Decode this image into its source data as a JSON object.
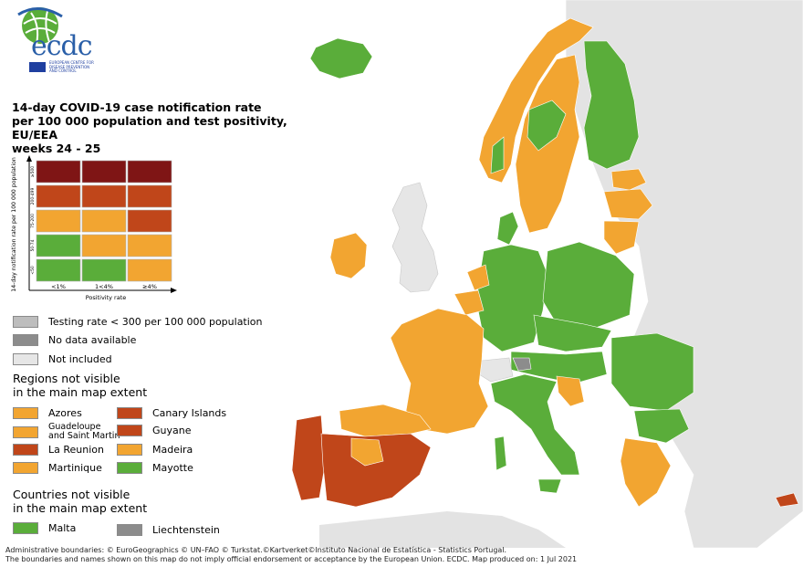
{
  "title": {
    "line1": "14-day COVID-19 case notification rate",
    "line2": "per 100 000 population and test positivity, EU/EEA",
    "line3": "weeks 24 - 25"
  },
  "logo": {
    "wordmark": "ecdc",
    "tagline_line1": "EUROPEAN CENTRE FOR",
    "tagline_line2": "DISEASE PREVENTION",
    "tagline_line3": "AND CONTROL"
  },
  "colors": {
    "dark_red": "#7f1515",
    "red": "#c0461a",
    "orange": "#f2a531",
    "green": "#5aad3a",
    "grey_light": "#bdbdbd",
    "grey_dark": "#8c8c8c",
    "not_included": "#e6e6e6",
    "sea": "#ffffff",
    "non_eu": "#e3e3e3"
  },
  "matrix": {
    "y_axis_label": "14-day notification rate per 100 000 population",
    "x_axis_label": "Positivity rate",
    "rows": [
      "≥500",
      "200-499",
      "75-200",
      "50-74",
      "<50"
    ],
    "cols": [
      "<1%",
      "1<4%",
      "≥4%"
    ],
    "cells": [
      [
        "dark_red",
        "dark_red",
        "dark_red"
      ],
      [
        "red",
        "red",
        "red"
      ],
      [
        "orange",
        "orange",
        "red"
      ],
      [
        "green",
        "orange",
        "orange"
      ],
      [
        "green",
        "green",
        "orange"
      ]
    ]
  },
  "legend": {
    "testing_rate": "Testing rate < 300 per 100 000 population",
    "no_data": "No data available",
    "not_included": "Not included"
  },
  "regions_heading": {
    "line1": "Regions not visible",
    "line2": "in the main map extent"
  },
  "regions": [
    {
      "label": "Azores",
      "color": "orange"
    },
    {
      "label": "Canary Islands",
      "color": "red"
    },
    {
      "label_line1": "Guadeloupe",
      "label_line2": "and Saint Martin",
      "color": "orange"
    },
    {
      "label": "Guyane",
      "color": "red"
    },
    {
      "label": "La Reunion",
      "color": "red"
    },
    {
      "label": "Madeira",
      "color": "orange"
    },
    {
      "label": "Martinique",
      "color": "orange"
    },
    {
      "label": "Mayotte",
      "color": "green"
    }
  ],
  "countries_heading": {
    "line1": "Countries not visible",
    "line2": "in the main map extent"
  },
  "countries": [
    {
      "label": "Malta",
      "color": "green"
    },
    {
      "label": "Liechtenstein",
      "color": "grey_dark"
    }
  ],
  "footer": {
    "line1": "Administrative boundaries: © EuroGeographics © UN–FAO © Turkstat.©Kartverket©Instituto Nacional de Estatística - Statistics Portugal.",
    "line2": "The boundaries and names shown on this map do not imply official endorsement or acceptance by the European Union. ECDC. Map produced on: 1 Jul 2021"
  }
}
